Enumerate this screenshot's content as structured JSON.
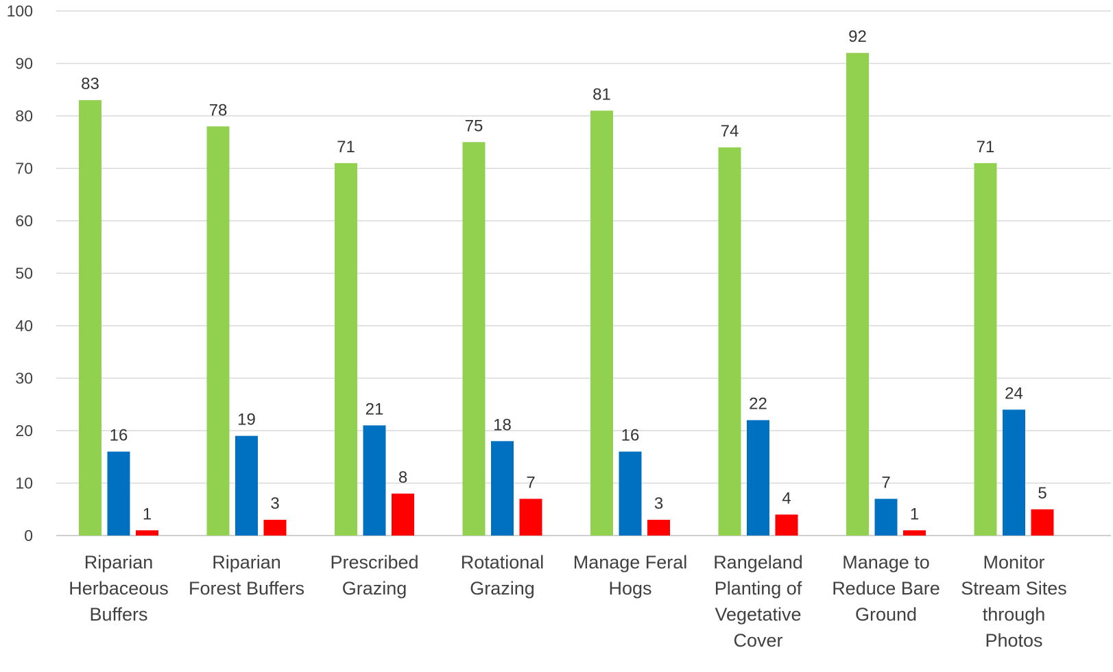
{
  "chart_data": {
    "type": "bar",
    "categories": [
      [
        "Riparian",
        "Herbaceous",
        "Buffers"
      ],
      [
        "Riparian",
        "Forest Buffers"
      ],
      [
        "Prescribed",
        "Grazing"
      ],
      [
        "Rotational",
        "Grazing"
      ],
      [
        "Manage Feral",
        "Hogs"
      ],
      [
        "Rangeland",
        "Planting of",
        "Vegetative",
        "Cover"
      ],
      [
        "Manage to",
        "Reduce Bare",
        "Ground"
      ],
      [
        "Monitor",
        "Stream Sites",
        "through",
        "Photos"
      ]
    ],
    "series": [
      {
        "color": "#92d050",
        "values": [
          83,
          78,
          71,
          75,
          81,
          74,
          92,
          71
        ]
      },
      {
        "color": "#0070c0",
        "values": [
          16,
          19,
          21,
          18,
          16,
          22,
          7,
          24
        ]
      },
      {
        "color": "#ff0000",
        "values": [
          1,
          3,
          8,
          7,
          3,
          4,
          1,
          5
        ]
      }
    ],
    "ylim": [
      0,
      100
    ],
    "yticks": [
      0,
      10,
      20,
      30,
      40,
      50,
      60,
      70,
      80,
      90,
      100
    ],
    "grid": true,
    "legend": "none",
    "title": "",
    "xlabel": "",
    "ylabel": ""
  }
}
